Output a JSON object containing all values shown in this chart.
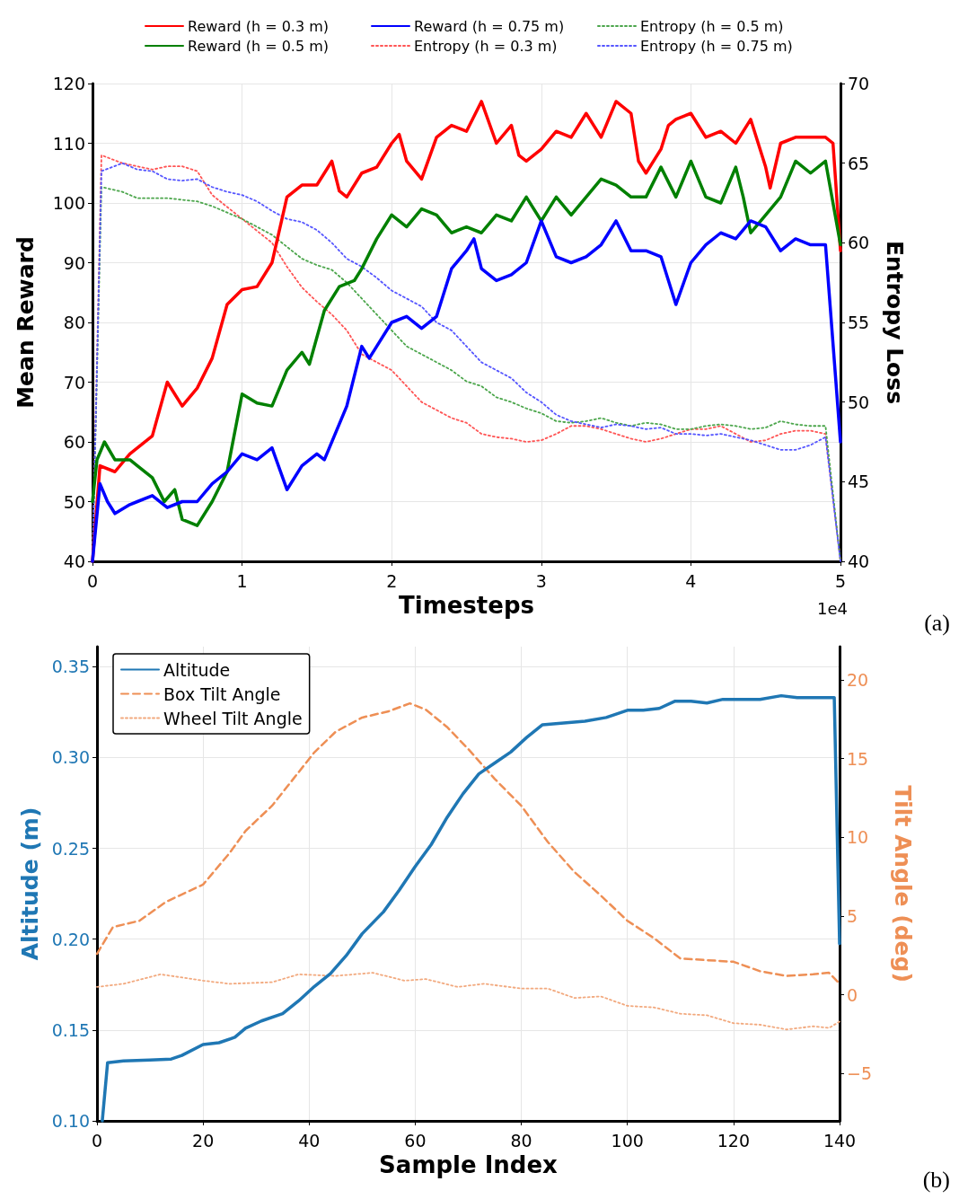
{
  "chart_data": [
    {
      "type": "line",
      "xlabel": "Timesteps",
      "ylabel": "Mean Reward",
      "y2label": "Entropy Loss",
      "xlim": [
        0,
        5
      ],
      "xticks": [
        0,
        1,
        2,
        3,
        4,
        5
      ],
      "ylim": [
        40,
        120
      ],
      "yticks": [
        40,
        50,
        60,
        70,
        80,
        90,
        100,
        110,
        120
      ],
      "y2lim": [
        40,
        70
      ],
      "y2ticks": [
        40,
        45,
        50,
        55,
        60,
        65,
        70
      ],
      "grid": true,
      "legend": "top",
      "annotations": [
        "1e4",
        "(a)"
      ],
      "series": [
        {
          "name": "Reward (h = 0.3 m)",
          "color": "#ff0000",
          "line_style": "solid",
          "x": [
            0,
            0.05,
            0.15,
            0.25,
            0.4,
            0.5,
            0.6,
            0.7,
            0.8,
            0.9,
            1,
            1.1,
            1.2,
            1.3,
            1.4,
            1.5,
            1.6,
            1.65,
            1.7,
            1.8,
            1.9,
            2,
            2.05,
            2.1,
            2.2,
            2.3,
            2.4,
            2.5,
            2.6,
            2.7,
            2.8,
            2.85,
            2.9,
            3,
            3.1,
            3.2,
            3.3,
            3.4,
            3.5,
            3.6,
            3.65,
            3.7,
            3.8,
            3.85,
            3.9,
            4,
            4.1,
            4.2,
            4.3,
            4.4,
            4.5,
            4.53,
            4.6,
            4.7,
            4.8,
            4.9,
            4.95,
            5
          ],
          "values": [
            40,
            56,
            55,
            58,
            61,
            70,
            66,
            69,
            74,
            83,
            85.5,
            86,
            90,
            101,
            103,
            103,
            107,
            102,
            101,
            105,
            106,
            110,
            111.5,
            107,
            104,
            111,
            113,
            112,
            117,
            110,
            113,
            108,
            107,
            109,
            112,
            111,
            115,
            111,
            117,
            115,
            107,
            105,
            109,
            113,
            114,
            115,
            111,
            112,
            110,
            114,
            106,
            102.5,
            110,
            111,
            111,
            111,
            110,
            92
          ]
        },
        {
          "name": "Reward (h = 0.5 m)",
          "color": "#008000",
          "line_style": "solid",
          "x": [
            0,
            0.03,
            0.08,
            0.15,
            0.25,
            0.3,
            0.4,
            0.48,
            0.55,
            0.6,
            0.7,
            0.8,
            0.9,
            1,
            1.1,
            1.2,
            1.3,
            1.4,
            1.45,
            1.55,
            1.65,
            1.75,
            1.8,
            1.9,
            2,
            2.1,
            2.2,
            2.3,
            2.4,
            2.5,
            2.6,
            2.7,
            2.8,
            2.9,
            3,
            3.05,
            3.1,
            3.2,
            3.3,
            3.4,
            3.5,
            3.6,
            3.7,
            3.8,
            3.9,
            4,
            4.1,
            4.2,
            4.3,
            4.35,
            4.4,
            4.5,
            4.6,
            4.7,
            4.8,
            4.9,
            5
          ],
          "values": [
            50,
            57,
            60,
            57,
            57,
            56,
            54,
            50,
            52,
            47,
            46,
            50,
            55,
            68,
            66.5,
            66,
            72,
            75,
            73,
            82,
            86,
            87,
            89,
            94,
            98,
            96,
            99,
            98,
            95,
            96,
            95,
            98,
            97,
            101,
            97,
            99,
            101,
            98,
            101,
            104,
            103,
            101,
            101,
            106,
            101,
            107,
            101,
            100,
            106,
            101,
            95,
            98,
            101,
            107,
            105,
            107,
            93
          ]
        },
        {
          "name": "Reward (h = 0.75 m)",
          "color": "#0000ff",
          "line_style": "solid",
          "x": [
            0,
            0.05,
            0.1,
            0.15,
            0.25,
            0.3,
            0.4,
            0.5,
            0.6,
            0.7,
            0.8,
            0.9,
            1,
            1.1,
            1.2,
            1.3,
            1.4,
            1.5,
            1.55,
            1.7,
            1.8,
            1.85,
            1.9,
            2,
            2.1,
            2.2,
            2.3,
            2.4,
            2.5,
            2.55,
            2.6,
            2.7,
            2.8,
            2.9,
            3,
            3.1,
            3.2,
            3.3,
            3.4,
            3.5,
            3.6,
            3.7,
            3.8,
            3.9,
            4,
            4.1,
            4.2,
            4.3,
            4.4,
            4.5,
            4.6,
            4.7,
            4.8,
            4.9,
            5
          ],
          "values": [
            40,
            53,
            50,
            48,
            49.5,
            50,
            51,
            49,
            50,
            50,
            53,
            55,
            58,
            57,
            59,
            52,
            56,
            58,
            57,
            66,
            76,
            74,
            76,
            80,
            81,
            79,
            81,
            89,
            92,
            94,
            89,
            87,
            88,
            90,
            97,
            91,
            90,
            91,
            93,
            97,
            92,
            92,
            91,
            83,
            90,
            93,
            95,
            94,
            97,
            96,
            92,
            94,
            93,
            93,
            60
          ]
        },
        {
          "name": "Entropy (h = 0.3 m)",
          "color": "#ff5555",
          "line_style": "dotted",
          "axis": "y2",
          "x": [
            0,
            0.06,
            0.2,
            0.4,
            0.5,
            0.6,
            0.7,
            0.8,
            1,
            1.2,
            1.3,
            1.4,
            1.5,
            1.6,
            1.7,
            1.8,
            1.9,
            2,
            2.1,
            2.2,
            2.3,
            2.4,
            2.5,
            2.6,
            2.7,
            2.8,
            2.9,
            3,
            3.1,
            3.2,
            3.3,
            3.4,
            3.5,
            3.6,
            3.7,
            3.8,
            3.9,
            4,
            4.1,
            4.2,
            4.3,
            4.4,
            4.5,
            4.6,
            4.7,
            4.8,
            4.9,
            5
          ],
          "values": [
            40,
            65.5,
            65,
            64.6,
            64.8,
            64.8,
            64.5,
            63,
            61.5,
            60,
            58.5,
            57.2,
            56.3,
            55.5,
            54.5,
            53,
            52.5,
            52,
            51,
            50,
            49.5,
            49,
            48.7,
            48,
            47.8,
            47.7,
            47.5,
            47.6,
            48,
            48.5,
            48.5,
            48.3,
            48,
            47.7,
            47.5,
            47.7,
            48,
            48.3,
            48.3,
            48.5,
            48,
            47.5,
            47.6,
            48,
            48.2,
            48.2,
            48,
            40
          ]
        },
        {
          "name": "Entropy (h = 0.5 m)",
          "color": "#4ca64c",
          "line_style": "dotted",
          "axis": "y2",
          "x": [
            0,
            0.06,
            0.2,
            0.3,
            0.5,
            0.7,
            0.8,
            1,
            1.2,
            1.4,
            1.5,
            1.6,
            1.7,
            1.8,
            1.9,
            2,
            2.1,
            2.2,
            2.3,
            2.4,
            2.5,
            2.6,
            2.7,
            2.8,
            2.9,
            3,
            3.1,
            3.2,
            3.3,
            3.4,
            3.5,
            3.6,
            3.7,
            3.8,
            3.9,
            4,
            4.1,
            4.2,
            4.3,
            4.4,
            4.5,
            4.6,
            4.7,
            4.8,
            4.9,
            5
          ],
          "values": [
            40,
            63.5,
            63.2,
            62.8,
            62.8,
            62.6,
            62.3,
            61.5,
            60.5,
            59,
            58.6,
            58.3,
            57.5,
            56.5,
            55.5,
            54.5,
            53.5,
            53,
            52.5,
            52,
            51.3,
            51,
            50.3,
            50,
            49.6,
            49.3,
            48.8,
            48.7,
            48.8,
            49,
            48.7,
            48.5,
            48.7,
            48.6,
            48.3,
            48.3,
            48.5,
            48.6,
            48.5,
            48.3,
            48.4,
            48.8,
            48.6,
            48.5,
            48.5,
            40
          ]
        },
        {
          "name": "Entropy (h = 0.75 m)",
          "color": "#5555ff",
          "line_style": "dotted",
          "axis": "y2",
          "x": [
            0,
            0.06,
            0.2,
            0.3,
            0.4,
            0.5,
            0.6,
            0.7,
            0.8,
            0.9,
            1,
            1.1,
            1.2,
            1.3,
            1.4,
            1.5,
            1.6,
            1.7,
            1.8,
            1.9,
            2,
            2.1,
            2.2,
            2.3,
            2.4,
            2.5,
            2.6,
            2.7,
            2.8,
            2.9,
            3,
            3.1,
            3.2,
            3.3,
            3.4,
            3.5,
            3.6,
            3.7,
            3.8,
            3.9,
            4,
            4.1,
            4.2,
            4.3,
            4.4,
            4.5,
            4.6,
            4.7,
            4.8,
            4.9,
            5
          ],
          "values": [
            40,
            64.5,
            65,
            64.6,
            64.5,
            64,
            63.9,
            64,
            63.5,
            63.2,
            63,
            62.6,
            62,
            61.5,
            61.3,
            60.8,
            60,
            59,
            58.5,
            57.8,
            57,
            56.5,
            56,
            55,
            54.5,
            53.5,
            52.5,
            52,
            51.5,
            50.6,
            50,
            49.2,
            48.8,
            48.6,
            48.4,
            48.6,
            48.5,
            48.3,
            48.4,
            48,
            48,
            47.9,
            48,
            47.8,
            47.6,
            47.3,
            47,
            47,
            47.3,
            47.8,
            40
          ]
        }
      ]
    },
    {
      "type": "line",
      "xlabel": "Sample Index",
      "ylabel": "Altitude (m)",
      "y2label": "Tilt Angle (deg)",
      "xlim": [
        0,
        140
      ],
      "xticks": [
        0,
        20,
        40,
        60,
        80,
        100,
        120,
        140
      ],
      "ylim": [
        0.1,
        0.361
      ],
      "yticks": [
        {
          "value": 0.1,
          "label": "0.10"
        },
        {
          "value": 0.15,
          "label": "0.15"
        },
        {
          "value": 0.2,
          "label": "0.20"
        },
        {
          "value": 0.25,
          "label": "0.25"
        },
        {
          "value": 0.3,
          "label": "0.30"
        },
        {
          "value": 0.35,
          "label": "0.35"
        }
      ],
      "y2lim": [
        -8,
        22.1
      ],
      "y2ticks": [
        {
          "value": -5,
          "label": "−5"
        },
        0,
        5,
        10,
        15,
        20
      ],
      "grid": true,
      "legend": "top left",
      "annotations": [
        "(b)"
      ],
      "series": [
        {
          "name": "Altitude",
          "color": "#1f77b4",
          "line_style": "solid",
          "x": [
            1,
            2,
            5,
            10,
            14,
            16,
            20,
            23,
            26,
            28,
            31,
            35,
            38,
            41,
            44,
            47,
            50,
            54,
            57,
            60,
            63,
            66,
            69,
            72,
            75,
            78,
            81,
            84,
            88,
            92,
            96,
            100,
            103,
            106,
            109,
            112,
            115,
            118,
            122,
            125,
            129,
            132,
            136,
            139,
            140
          ],
          "values": [
            0.1,
            0.132,
            0.133,
            0.1335,
            0.134,
            0.136,
            0.142,
            0.143,
            0.146,
            0.151,
            0.155,
            0.159,
            0.166,
            0.174,
            0.181,
            0.191,
            0.203,
            0.215,
            0.227,
            0.24,
            0.252,
            0.267,
            0.28,
            0.291,
            0.297,
            0.303,
            0.311,
            0.318,
            0.319,
            0.32,
            0.322,
            0.326,
            0.326,
            0.327,
            0.331,
            0.331,
            0.33,
            0.332,
            0.332,
            0.332,
            0.334,
            0.333,
            0.333,
            0.333,
            0.1975
          ]
        },
        {
          "name": "Box Tilt Angle",
          "color": "#ee8f55",
          "line_style": "dashed",
          "axis": "y2",
          "x": [
            0,
            3,
            8,
            13,
            20,
            25,
            28,
            33,
            37,
            41,
            45,
            50,
            55,
            59,
            62,
            66,
            70,
            75,
            80,
            85,
            90,
            95,
            100,
            105,
            110,
            115,
            120,
            125,
            130,
            135,
            138,
            140
          ],
          "values": [
            2.6,
            4.3,
            4.7,
            5.9,
            7,
            9,
            10.4,
            12,
            13.7,
            15.4,
            16.7,
            17.6,
            18,
            18.5,
            18.1,
            17,
            15.6,
            13.7,
            12,
            9.7,
            7.8,
            6.3,
            4.7,
            3.6,
            2.3,
            2.2,
            2.1,
            1.5,
            1.2,
            1.3,
            1.4,
            0.7
          ]
        },
        {
          "name": "Wheel Tilt Angle",
          "color": "#f2a97e",
          "line_style": "dotted",
          "axis": "y2",
          "x": [
            0,
            5,
            12,
            20,
            25,
            33,
            38,
            45,
            52,
            58,
            62,
            68,
            73,
            80,
            85,
            90,
            95,
            100,
            105,
            110,
            115,
            120,
            125,
            130,
            135,
            138,
            140
          ],
          "values": [
            0.5,
            0.7,
            1.3,
            0.9,
            0.7,
            0.8,
            1.3,
            1.2,
            1.4,
            0.9,
            1,
            0.5,
            0.7,
            0.4,
            0.4,
            -0.2,
            -0.1,
            -0.7,
            -0.8,
            -1.2,
            -1.3,
            -1.8,
            -1.9,
            -2.2,
            -2,
            -2.1,
            -1.7
          ]
        }
      ]
    }
  ]
}
